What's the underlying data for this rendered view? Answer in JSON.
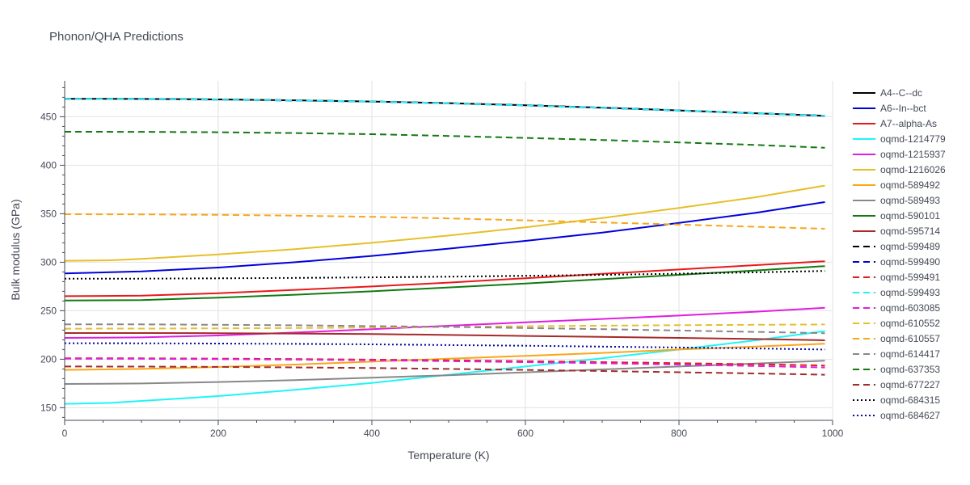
{
  "chart_data": {
    "type": "line",
    "title": "Phonon/QHA Predictions",
    "xlabel": "Temperature (K)",
    "ylabel": "Bulk modulus (GPa)",
    "xlim": [
      0,
      1000
    ],
    "ylim": [
      137,
      487
    ],
    "xticks": [
      0,
      200,
      400,
      600,
      800,
      1000
    ],
    "yticks": [
      150,
      200,
      250,
      300,
      350,
      400,
      450
    ],
    "grid": true,
    "legend": "right",
    "series": [
      {
        "name": "A4--C--dc",
        "color": "#000000",
        "dash": "solid",
        "x": [
          0,
          100,
          200,
          300,
          400,
          500,
          600,
          700,
          800,
          900,
          990
        ],
        "y": [
          468.5,
          468.3,
          467.8,
          466.9,
          465.7,
          464.0,
          461.8,
          459.3,
          456.5,
          453.6,
          451.0
        ]
      },
      {
        "name": "A6--In--bct",
        "color": "#0000dd",
        "dash": "solid",
        "x": [
          0,
          100,
          200,
          300,
          400,
          500,
          600,
          700,
          800,
          900,
          990
        ],
        "y": [
          288.5,
          290.5,
          294.5,
          300.0,
          306.5,
          314.0,
          322.0,
          330.5,
          340.5,
          351.0,
          362.0
        ]
      },
      {
        "name": "A7--alpha-As",
        "color": "#e8191a",
        "dash": "solid",
        "x": [
          0,
          100,
          200,
          300,
          400,
          500,
          600,
          700,
          800,
          900,
          990
        ],
        "y": [
          265.0,
          265.5,
          268.0,
          271.5,
          275.0,
          279.0,
          283.5,
          288.0,
          292.5,
          297.0,
          301.0
        ]
      },
      {
        "name": "oqmd-1214779",
        "color": "#1ff5f7",
        "dash": "solid",
        "x": [
          0,
          60,
          100,
          200,
          300,
          400,
          500,
          600,
          700,
          800,
          900,
          990
        ],
        "y": [
          154.0,
          155.0,
          157.0,
          162.0,
          168.5,
          175.5,
          184.0,
          192.5,
          201.0,
          210.0,
          219.5,
          229.0
        ]
      },
      {
        "name": "oqmd-1215937",
        "color": "#e11de1",
        "dash": "solid",
        "x": [
          0,
          100,
          200,
          300,
          400,
          500,
          600,
          700,
          800,
          900,
          990
        ],
        "y": [
          222.0,
          222.5,
          224.5,
          227.5,
          231.0,
          234.5,
          238.0,
          241.5,
          245.0,
          249.0,
          253.0
        ]
      },
      {
        "name": "oqmd-1216026",
        "color": "#e7bf2a",
        "dash": "solid",
        "x": [
          0,
          60,
          100,
          200,
          300,
          400,
          500,
          600,
          700,
          800,
          900,
          990
        ],
        "y": [
          301.5,
          302.0,
          303.5,
          308.0,
          313.5,
          320.0,
          327.5,
          336.0,
          345.5,
          356.0,
          367.0,
          379.0
        ]
      },
      {
        "name": "oqmd-589492",
        "color": "#fba617",
        "dash": "solid",
        "x": [
          0,
          100,
          200,
          300,
          400,
          500,
          600,
          700,
          800,
          900,
          990
        ],
        "y": [
          189.0,
          190.0,
          192.0,
          194.5,
          197.5,
          200.5,
          203.5,
          206.5,
          210.0,
          213.0,
          216.0
        ]
      },
      {
        "name": "oqmd-589493",
        "color": "#888888",
        "dash": "solid",
        "x": [
          0,
          100,
          200,
          300,
          400,
          500,
          600,
          700,
          800,
          900,
          990
        ],
        "y": [
          174.5,
          175.0,
          176.5,
          178.5,
          181.0,
          183.5,
          186.5,
          189.5,
          192.5,
          195.5,
          198.5
        ]
      },
      {
        "name": "oqmd-590101",
        "color": "#117a11",
        "dash": "solid",
        "x": [
          0,
          100,
          200,
          300,
          400,
          500,
          600,
          700,
          800,
          900,
          990
        ],
        "y": [
          260.5,
          261.0,
          263.5,
          266.5,
          270.0,
          274.0,
          278.0,
          282.5,
          287.0,
          291.5,
          296.0
        ]
      },
      {
        "name": "oqmd-595714",
        "color": "#a52a2a",
        "dash": "solid",
        "x": [
          0,
          100,
          200,
          300,
          400,
          500,
          600,
          700,
          800,
          900,
          990
        ],
        "y": [
          227.0,
          227.0,
          226.8,
          226.5,
          226.0,
          225.0,
          224.0,
          223.0,
          222.0,
          220.8,
          219.5
        ]
      },
      {
        "name": "oqmd-599489",
        "color": "#000000",
        "dash": "dash",
        "x": [
          0,
          100,
          200,
          300,
          400,
          500,
          600,
          700,
          800,
          900,
          990
        ],
        "y": [
          468.5,
          468.3,
          467.8,
          466.9,
          465.7,
          464.0,
          461.8,
          459.3,
          456.5,
          453.6,
          451.0
        ]
      },
      {
        "name": "oqmd-599490",
        "color": "#0000dd",
        "dash": "dash",
        "x": [
          0,
          100,
          200,
          300,
          400,
          500,
          600,
          700,
          800,
          900,
          990
        ],
        "y": [
          468.3,
          468.1,
          467.6,
          466.7,
          465.5,
          463.8,
          461.6,
          459.1,
          456.3,
          453.4,
          450.8
        ]
      },
      {
        "name": "oqmd-599491",
        "color": "#e8191a",
        "dash": "dash",
        "x": [
          0,
          100,
          200,
          300,
          400,
          500,
          600,
          700,
          800,
          900,
          990
        ],
        "y": [
          201.0,
          200.9,
          200.6,
          200.2,
          199.6,
          198.9,
          198.0,
          197.0,
          195.9,
          194.8,
          193.5
        ]
      },
      {
        "name": "oqmd-599493",
        "color": "#1ff5f7",
        "dash": "dash",
        "x": [
          0,
          100,
          200,
          300,
          400,
          500,
          600,
          700,
          800,
          900,
          990
        ],
        "y": [
          468.4,
          468.2,
          467.7,
          466.8,
          465.6,
          463.9,
          461.7,
          459.2,
          456.4,
          453.5,
          450.9
        ]
      },
      {
        "name": "oqmd-603085",
        "color": "#e11de1",
        "dash": "dash",
        "x": [
          0,
          100,
          200,
          300,
          400,
          500,
          600,
          700,
          800,
          900,
          990
        ],
        "y": [
          200.5,
          200.4,
          200.1,
          199.6,
          198.9,
          198.0,
          197.0,
          195.8,
          194.5,
          193.0,
          191.5
        ]
      },
      {
        "name": "oqmd-610552",
        "color": "#e7bf2a",
        "dash": "dash",
        "x": [
          0,
          100,
          200,
          300,
          400,
          500,
          600,
          700,
          800,
          900,
          990
        ],
        "y": [
          231.5,
          231.6,
          231.8,
          232.2,
          232.7,
          233.3,
          234.0,
          234.6,
          235.1,
          235.5,
          235.8
        ]
      },
      {
        "name": "oqmd-610557",
        "color": "#fba617",
        "dash": "dash",
        "x": [
          0,
          100,
          200,
          300,
          400,
          500,
          600,
          700,
          800,
          900,
          990
        ],
        "y": [
          349.5,
          349.3,
          348.8,
          348.0,
          346.8,
          345.2,
          343.2,
          341.0,
          338.8,
          336.6,
          334.5
        ]
      },
      {
        "name": "oqmd-614417",
        "color": "#888888",
        "dash": "dash",
        "x": [
          0,
          100,
          200,
          300,
          400,
          500,
          600,
          700,
          800,
          900,
          990
        ],
        "y": [
          236.0,
          235.9,
          235.5,
          235.0,
          234.2,
          233.3,
          232.2,
          231.0,
          229.6,
          228.2,
          226.8
        ]
      },
      {
        "name": "oqmd-637353",
        "color": "#117a11",
        "dash": "dash",
        "x": [
          0,
          100,
          200,
          300,
          400,
          500,
          600,
          700,
          800,
          900,
          990
        ],
        "y": [
          434.5,
          434.4,
          434.0,
          433.2,
          432.0,
          430.2,
          428.2,
          426.0,
          423.5,
          420.9,
          418.0
        ]
      },
      {
        "name": "oqmd-677227",
        "color": "#a52a2a",
        "dash": "dash",
        "x": [
          0,
          100,
          200,
          300,
          400,
          500,
          600,
          700,
          800,
          900,
          990
        ],
        "y": [
          192.5,
          192.4,
          192.1,
          191.6,
          190.9,
          190.0,
          189.0,
          187.8,
          186.6,
          185.3,
          184.0
        ]
      },
      {
        "name": "oqmd-684315",
        "color": "#000000",
        "dash": "dot",
        "x": [
          0,
          100,
          200,
          300,
          400,
          500,
          600,
          700,
          800,
          900,
          990
        ],
        "y": [
          283.0,
          283.1,
          283.4,
          283.8,
          284.4,
          285.1,
          286.0,
          287.0,
          288.2,
          289.6,
          291.0
        ]
      },
      {
        "name": "oqmd-684627",
        "color": "#0000dd",
        "dash": "dot",
        "x": [
          0,
          100,
          200,
          300,
          400,
          500,
          600,
          700,
          800,
          900,
          990
        ],
        "y": [
          216.5,
          216.4,
          216.2,
          215.8,
          215.3,
          214.6,
          213.9,
          213.0,
          212.1,
          211.1,
          210.0
        ]
      }
    ]
  }
}
